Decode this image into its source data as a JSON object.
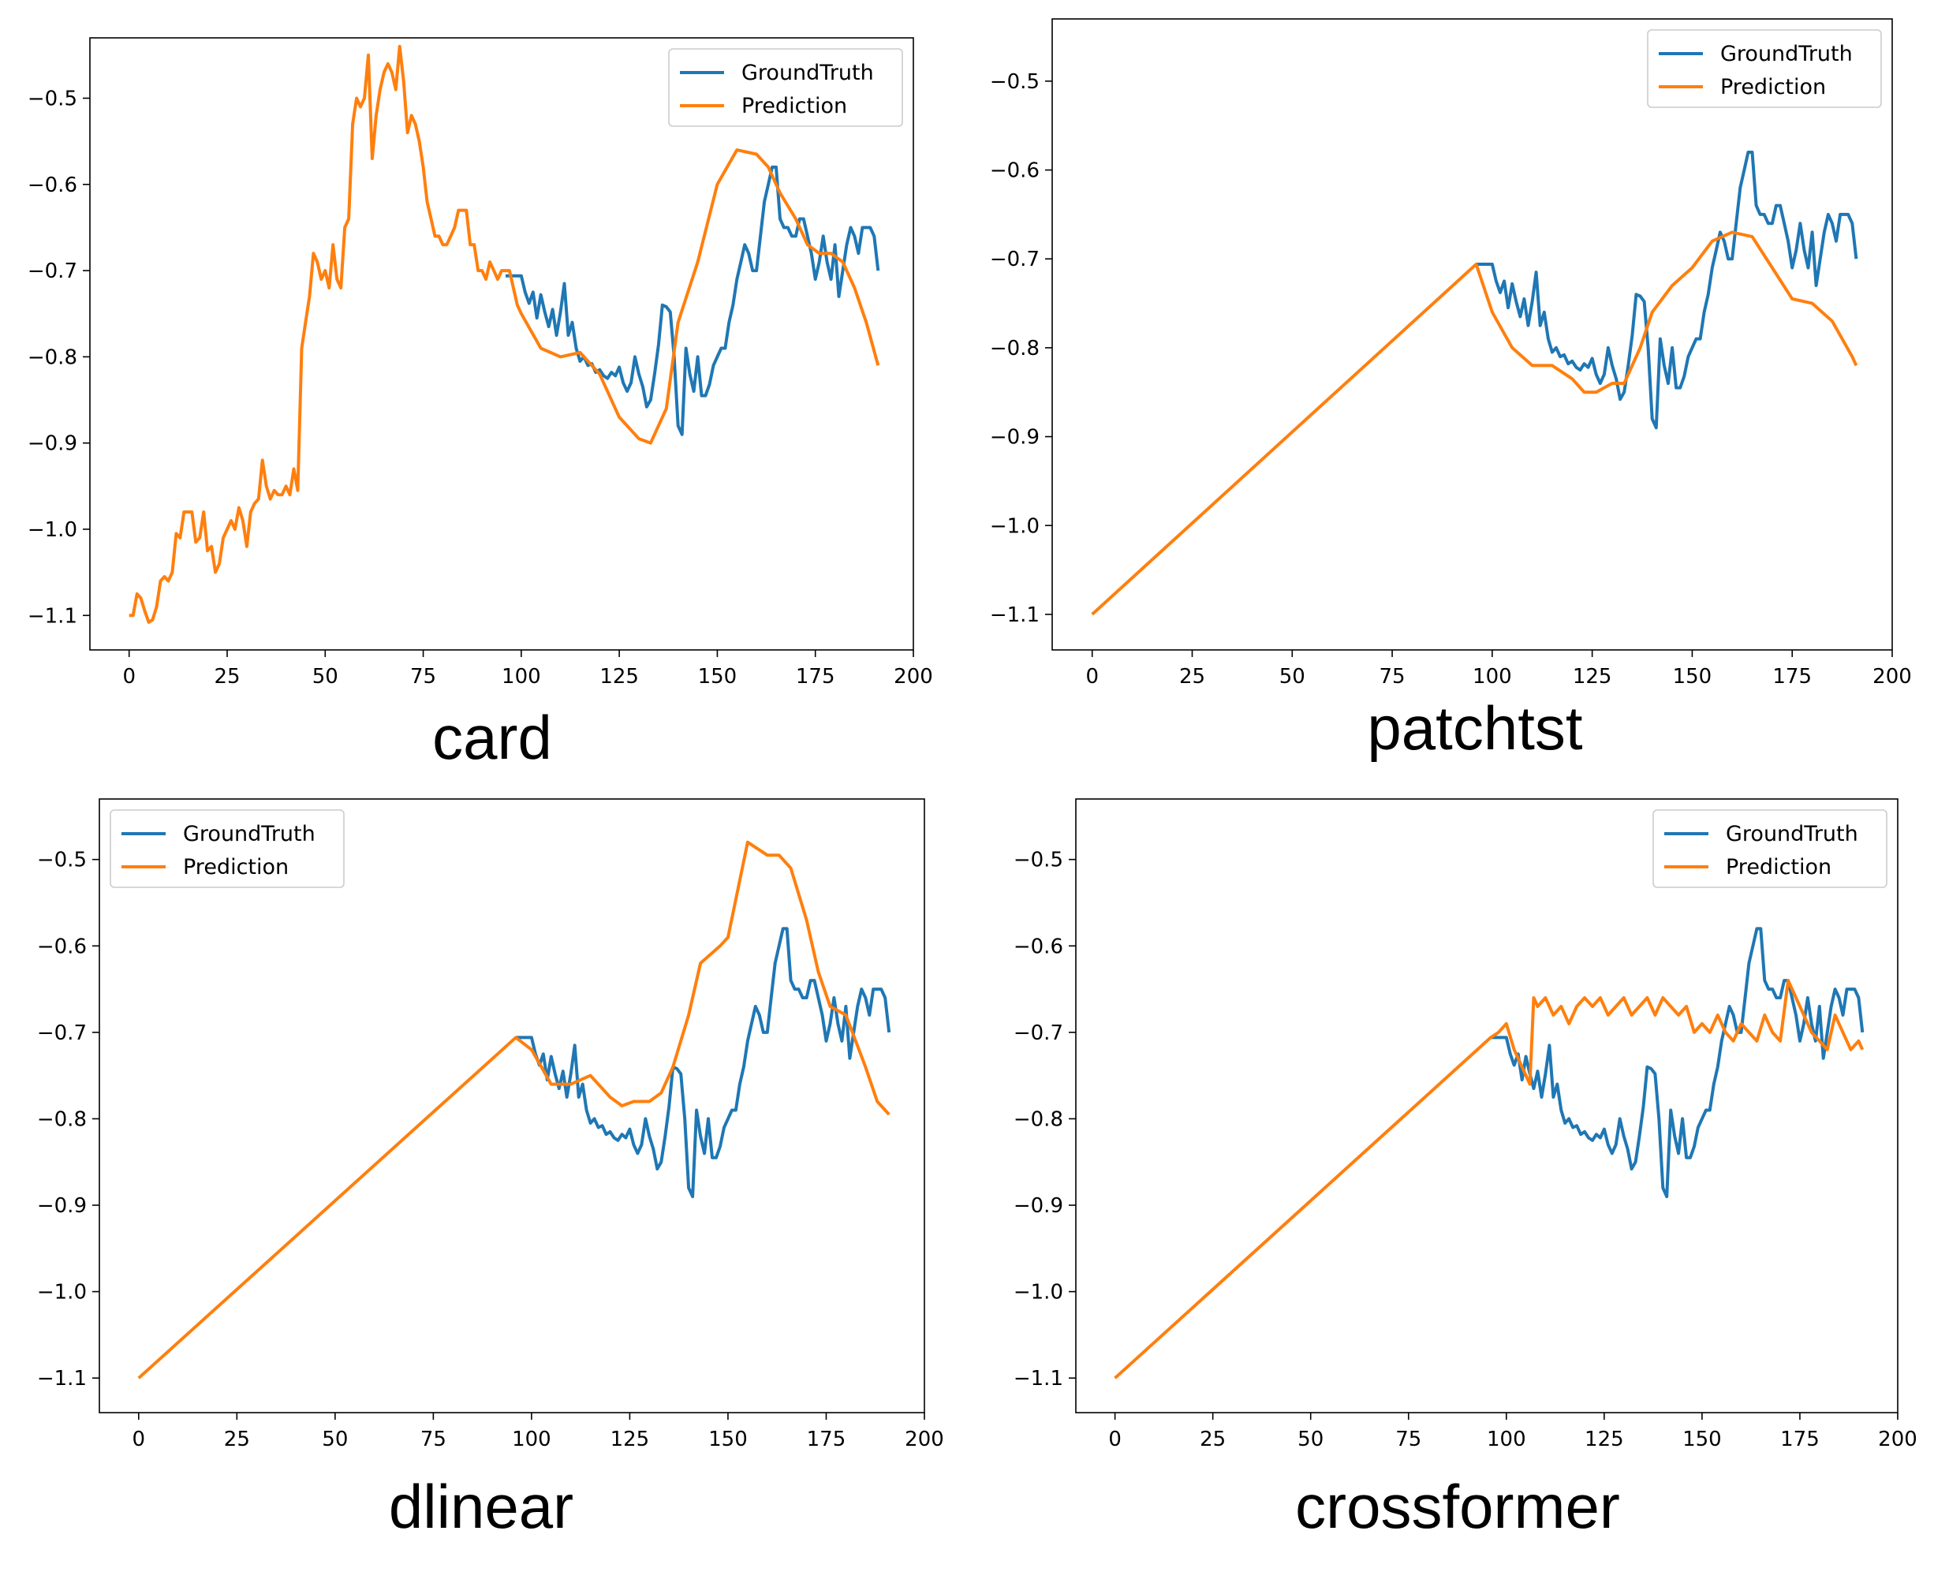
{
  "colors": {
    "ground_truth": "#1f77b4",
    "prediction": "#ff7f0e"
  },
  "chart_data": [
    {
      "type": "line",
      "title": "card",
      "xlim": [
        -10,
        200
      ],
      "ylim": [
        -1.14,
        -0.43
      ],
      "xticks": [
        0,
        25,
        50,
        75,
        100,
        125,
        150,
        175,
        200
      ],
      "xtick_labels": [
        "0",
        "25",
        "50",
        "75",
        "100",
        "125",
        "150",
        "175",
        "200"
      ],
      "yticks": [
        -0.5,
        -0.6,
        -0.7,
        -0.8,
        -0.9,
        -1.0,
        -1.1
      ],
      "ytick_labels": [
        "−0.5",
        "−0.6",
        "−0.7",
        "−0.8",
        "−0.9",
        "−1.0",
        "−1.1"
      ],
      "legend": {
        "position": "top-right",
        "entries": [
          "GroundTruth",
          "Prediction"
        ]
      },
      "series": [
        {
          "name": "GroundTruth",
          "x": [
            96,
            100,
            101,
            102,
            103,
            104,
            105,
            106,
            107,
            108,
            109,
            110,
            111,
            112,
            113,
            114,
            115,
            116,
            117,
            118,
            119,
            120,
            121,
            122,
            123,
            124,
            125,
            126,
            127,
            128,
            129,
            130,
            131,
            132,
            133,
            134,
            135,
            136,
            137,
            138,
            139,
            140,
            141,
            142,
            143,
            144,
            145,
            146,
            147,
            148,
            149,
            150,
            151,
            152,
            153,
            154,
            155,
            156,
            157,
            158,
            159,
            160,
            161,
            162,
            163,
            164,
            165,
            166,
            167,
            168,
            169,
            170,
            171,
            172,
            173,
            174,
            175,
            176,
            177,
            178,
            179,
            180,
            181,
            182,
            183,
            184,
            185,
            186,
            187,
            188,
            189,
            190,
            191
          ],
          "values": [
            -0.706,
            -0.706,
            -0.725,
            -0.738,
            -0.725,
            -0.755,
            -0.728,
            -0.748,
            -0.765,
            -0.745,
            -0.775,
            -0.748,
            -0.715,
            -0.775,
            -0.76,
            -0.79,
            -0.805,
            -0.8,
            -0.81,
            -0.808,
            -0.818,
            -0.815,
            -0.822,
            -0.825,
            -0.818,
            -0.822,
            -0.812,
            -0.83,
            -0.84,
            -0.83,
            -0.8,
            -0.82,
            -0.835,
            -0.858,
            -0.85,
            -0.82,
            -0.786,
            -0.74,
            -0.742,
            -0.748,
            -0.8,
            -0.88,
            -0.89,
            -0.79,
            -0.82,
            -0.84,
            -0.8,
            -0.845,
            -0.845,
            -0.832,
            -0.81,
            -0.8,
            -0.79,
            -0.79,
            -0.76,
            -0.74,
            -0.71,
            -0.69,
            -0.67,
            -0.68,
            -0.7,
            -0.7,
            -0.66,
            -0.62,
            -0.6,
            -0.58,
            -0.58,
            -0.64,
            -0.65,
            -0.65,
            -0.66,
            -0.66,
            -0.64,
            -0.64,
            -0.66,
            -0.68,
            -0.71,
            -0.69,
            -0.66,
            -0.69,
            -0.71,
            -0.67,
            -0.73,
            -0.7,
            -0.67,
            -0.65,
            -0.66,
            -0.68,
            -0.65,
            -0.65,
            -0.65,
            -0.66,
            -0.7
          ]
        },
        {
          "name": "Prediction",
          "x": [
            0,
            1,
            2,
            3,
            4,
            5,
            6,
            7,
            8,
            9,
            10,
            11,
            12,
            13,
            14,
            15,
            16,
            17,
            18,
            19,
            20,
            21,
            22,
            23,
            24,
            25,
            26,
            27,
            28,
            29,
            30,
            31,
            32,
            33,
            34,
            35,
            36,
            37,
            38,
            39,
            40,
            41,
            42,
            43,
            44,
            45,
            46,
            47,
            48,
            49,
            50,
            51,
            52,
            53,
            54,
            55,
            56,
            57,
            58,
            59,
            60,
            61,
            62,
            63,
            64,
            65,
            66,
            67,
            68,
            69,
            70,
            71,
            72,
            73,
            74,
            75,
            76,
            77,
            78,
            79,
            80,
            81,
            82,
            83,
            84,
            85,
            86,
            87,
            88,
            89,
            90,
            91,
            92,
            93,
            94,
            95,
            96,
            97,
            98,
            99,
            100,
            105,
            110,
            115,
            120,
            125,
            130,
            133,
            137,
            140,
            145,
            150,
            155,
            160,
            163,
            166,
            170,
            173,
            176,
            179,
            182,
            185,
            188,
            191
          ],
          "values": [
            -1.1,
            -1.1,
            -1.075,
            -1.08,
            -1.095,
            -1.108,
            -1.105,
            -1.09,
            -1.06,
            -1.055,
            -1.06,
            -1.05,
            -1.005,
            -1.01,
            -0.98,
            -0.98,
            -0.98,
            -1.015,
            -1.01,
            -0.98,
            -1.025,
            -1.02,
            -1.05,
            -1.04,
            -1.01,
            -1.0,
            -0.99,
            -1.0,
            -0.975,
            -0.99,
            -1.02,
            -0.98,
            -0.97,
            -0.965,
            -0.92,
            -0.95,
            -0.965,
            -0.955,
            -0.96,
            -0.96,
            -0.95,
            -0.96,
            -0.93,
            -0.955,
            -0.79,
            -0.76,
            -0.73,
            -0.68,
            -0.69,
            -0.71,
            -0.7,
            -0.72,
            -0.67,
            -0.71,
            -0.72,
            -0.65,
            -0.64,
            -0.53,
            -0.5,
            -0.51,
            -0.5,
            -0.45,
            -0.57,
            -0.52,
            -0.49,
            -0.47,
            -0.46,
            -0.47,
            -0.49,
            -0.44,
            -0.48,
            -0.54,
            -0.52,
            -0.53,
            -0.55,
            -0.58,
            -0.62,
            -0.64,
            -0.66,
            -0.66,
            -0.67,
            -0.67,
            -0.66,
            -0.65,
            -0.63,
            -0.63,
            -0.63,
            -0.67,
            -0.67,
            -0.7,
            -0.7,
            -0.71,
            -0.69,
            -0.7,
            -0.71,
            -0.7,
            -0.7,
            -0.7,
            -0.72,
            -0.74,
            -0.75,
            -0.79,
            -0.8,
            -0.795,
            -0.82,
            -0.87,
            -0.895,
            -0.9,
            -0.86,
            -0.76,
            -0.69,
            -0.6,
            -0.56,
            -0.565,
            -0.58,
            -0.61,
            -0.64,
            -0.67,
            -0.68,
            -0.68,
            -0.69,
            -0.72,
            -0.76,
            -0.81
          ]
        }
      ]
    },
    {
      "type": "line",
      "title": "patchtst",
      "xlim": [
        -10,
        200
      ],
      "ylim": [
        -1.14,
        -0.43
      ],
      "xticks": [
        0,
        25,
        50,
        75,
        100,
        125,
        150,
        175,
        200
      ],
      "xtick_labels": [
        "0",
        "25",
        "50",
        "75",
        "100",
        "125",
        "150",
        "175",
        "200"
      ],
      "yticks": [
        -0.5,
        -0.6,
        -0.7,
        -0.8,
        -0.9,
        -1.0,
        -1.1
      ],
      "ytick_labels": [
        "−0.5",
        "−0.6",
        "−0.7",
        "−0.8",
        "−0.9",
        "−1.0",
        "−1.1"
      ],
      "legend": {
        "position": "top-right",
        "entries": [
          "GroundTruth",
          "Prediction"
        ]
      },
      "series": [
        {
          "name": "GroundTruth",
          "x": "same_as_card",
          "values": "same_as_card"
        },
        {
          "name": "Prediction",
          "x": [
            0,
            96,
            100,
            105,
            110,
            115,
            120,
            123,
            126,
            130,
            133,
            137,
            140,
            145,
            150,
            155,
            160,
            165,
            170,
            175,
            180,
            185,
            190,
            191
          ],
          "values": [
            -1.1,
            -0.706,
            -0.76,
            -0.8,
            -0.82,
            -0.82,
            -0.835,
            -0.85,
            -0.85,
            -0.84,
            -0.84,
            -0.8,
            -0.76,
            -0.73,
            -0.71,
            -0.68,
            -0.67,
            -0.675,
            -0.71,
            -0.745,
            -0.75,
            -0.77,
            -0.81,
            -0.82
          ]
        }
      ]
    },
    {
      "type": "line",
      "title": "dlinear",
      "xlim": [
        -10,
        200
      ],
      "ylim": [
        -1.14,
        -0.43
      ],
      "xticks": [
        0,
        25,
        50,
        75,
        100,
        125,
        150,
        175,
        200
      ],
      "xtick_labels": [
        "0",
        "25",
        "50",
        "75",
        "100",
        "125",
        "150",
        "175",
        "200"
      ],
      "yticks": [
        -0.5,
        -0.6,
        -0.7,
        -0.8,
        -0.9,
        -1.0,
        -1.1
      ],
      "ytick_labels": [
        "−0.5",
        "−0.6",
        "−0.7",
        "−0.8",
        "−0.9",
        "−1.0",
        "−1.1"
      ],
      "legend": {
        "position": "top-left",
        "entries": [
          "GroundTruth",
          "Prediction"
        ]
      },
      "series": [
        {
          "name": "GroundTruth",
          "x": "same_as_card",
          "values": "same_as_card"
        },
        {
          "name": "Prediction",
          "x": [
            0,
            96,
            100,
            105,
            110,
            115,
            120,
            123,
            126,
            130,
            133,
            136,
            140,
            143,
            148,
            150,
            155,
            160,
            163,
            166,
            170,
            173,
            176,
            180,
            185,
            188,
            191
          ],
          "values": [
            -1.1,
            -0.706,
            -0.72,
            -0.76,
            -0.76,
            -0.75,
            -0.775,
            -0.785,
            -0.78,
            -0.78,
            -0.77,
            -0.74,
            -0.68,
            -0.62,
            -0.6,
            -0.59,
            -0.48,
            -0.495,
            -0.495,
            -0.51,
            -0.57,
            -0.63,
            -0.67,
            -0.68,
            -0.74,
            -0.78,
            -0.795
          ]
        }
      ]
    },
    {
      "type": "line",
      "title": "crossformer",
      "xlim": [
        -10,
        200
      ],
      "ylim": [
        -1.14,
        -0.43
      ],
      "xticks": [
        0,
        25,
        50,
        75,
        100,
        125,
        150,
        175,
        200
      ],
      "xtick_labels": [
        "0",
        "25",
        "50",
        "75",
        "100",
        "125",
        "150",
        "175",
        "200"
      ],
      "yticks": [
        -0.5,
        -0.6,
        -0.7,
        -0.8,
        -0.9,
        -1.0,
        -1.1
      ],
      "ytick_labels": [
        "−0.5",
        "−0.6",
        "−0.7",
        "−0.8",
        "−0.9",
        "−1.0",
        "−1.1"
      ],
      "legend": {
        "position": "top-right",
        "entries": [
          "GroundTruth",
          "Prediction"
        ]
      },
      "series": [
        {
          "name": "GroundTruth",
          "x": "same_as_card",
          "values": "same_as_card"
        },
        {
          "name": "Prediction",
          "x": [
            0,
            96,
            98,
            100,
            102,
            104,
            106,
            107,
            108,
            110,
            112,
            114,
            116,
            118,
            120,
            122,
            124,
            126,
            128,
            130,
            132,
            134,
            136,
            138,
            140,
            142,
            144,
            146,
            148,
            150,
            152,
            154,
            156,
            158,
            160,
            162,
            164,
            166,
            168,
            170,
            172,
            174,
            176,
            178,
            180,
            182,
            184,
            186,
            188,
            190,
            191
          ],
          "values": [
            -1.1,
            -0.706,
            -0.7,
            -0.69,
            -0.72,
            -0.74,
            -0.76,
            -0.66,
            -0.67,
            -0.66,
            -0.68,
            -0.67,
            -0.69,
            -0.67,
            -0.66,
            -0.67,
            -0.66,
            -0.68,
            -0.67,
            -0.66,
            -0.68,
            -0.67,
            -0.66,
            -0.68,
            -0.66,
            -0.67,
            -0.68,
            -0.67,
            -0.7,
            -0.69,
            -0.7,
            -0.68,
            -0.7,
            -0.71,
            -0.69,
            -0.7,
            -0.71,
            -0.68,
            -0.7,
            -0.71,
            -0.64,
            -0.66,
            -0.68,
            -0.7,
            -0.71,
            -0.72,
            -0.68,
            -0.7,
            -0.72,
            -0.71,
            -0.72
          ]
        }
      ]
    }
  ]
}
